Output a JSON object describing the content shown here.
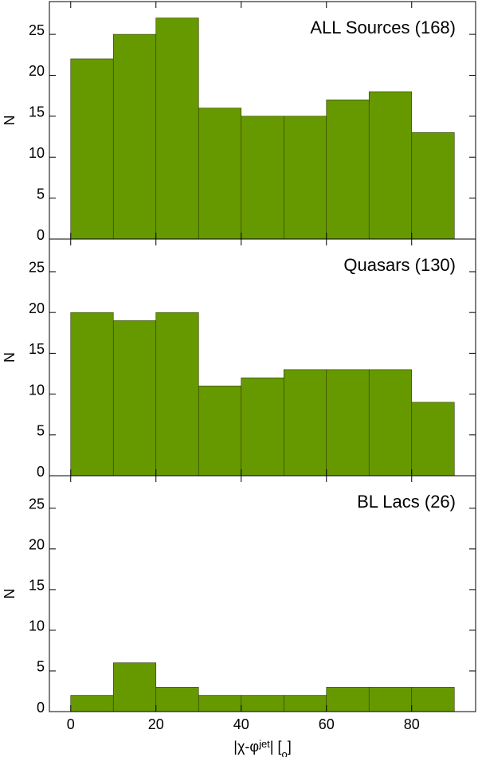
{
  "chart_data": [
    {
      "type": "histogram",
      "title": "ALL Sources (168)",
      "ylabel": "N",
      "bins": [
        0,
        10,
        20,
        30,
        40,
        50,
        60,
        70,
        80,
        90
      ],
      "values": [
        22,
        25,
        27,
        16,
        15,
        15,
        17,
        18,
        13
      ],
      "color": "#669900",
      "xlim": [
        -5,
        95
      ],
      "xticks": [
        0,
        20,
        40,
        60,
        80
      ],
      "ylim": [
        0,
        29
      ],
      "yticks": [
        0,
        5,
        10,
        15,
        20,
        25
      ]
    },
    {
      "type": "histogram",
      "title": "Quasars (130)",
      "ylabel": "N",
      "bins": [
        0,
        10,
        20,
        30,
        40,
        50,
        60,
        70,
        80,
        90
      ],
      "values": [
        20,
        19,
        20,
        11,
        12,
        13,
        13,
        13,
        9
      ],
      "color": "#669900",
      "xlim": [
        -5,
        95
      ],
      "xticks": [
        0,
        20,
        40,
        60,
        80
      ],
      "ylim": [
        0,
        29
      ],
      "yticks": [
        0,
        5,
        10,
        15,
        20,
        25
      ]
    },
    {
      "type": "histogram",
      "title": "BL Lacs (26)",
      "ylabel": "N",
      "xlabel": [
        "|χ-φ",
        "jet",
        "| [",
        "o",
        "]"
      ],
      "bins": [
        0,
        10,
        20,
        30,
        40,
        50,
        60,
        70,
        80,
        90
      ],
      "values": [
        2,
        6,
        3,
        2,
        2,
        2,
        3,
        3,
        3
      ],
      "color": "#669900",
      "xlim": [
        -5,
        95
      ],
      "xticks": [
        0,
        20,
        40,
        60,
        80
      ],
      "ylim": [
        0,
        29
      ],
      "yticks": [
        0,
        5,
        10,
        15,
        20,
        25
      ]
    }
  ]
}
